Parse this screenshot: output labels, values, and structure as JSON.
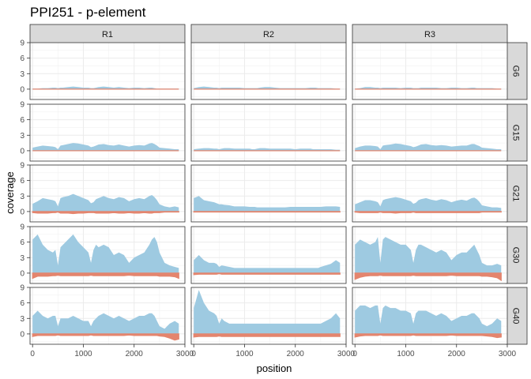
{
  "chart_data": {
    "type": "area",
    "title": "PPI251 - p-element",
    "xlabel": "position",
    "ylabel": "coverage",
    "xlim": [
      -50,
      3000
    ],
    "ylim": [
      -2,
      9
    ],
    "x_ticks": [
      0,
      1000,
      2000,
      3000
    ],
    "y_ticks": [
      0,
      3,
      6,
      9
    ],
    "grid": true,
    "columns": [
      "R1",
      "R2",
      "R3"
    ],
    "rows": [
      "G6",
      "G15",
      "G21",
      "G30",
      "G40"
    ],
    "colors": {
      "positive": "#9ecae1",
      "negative": "#e4856e",
      "strip_bg": "#d9d9d9",
      "panel_border": "#333333",
      "grid": "#ebebeb"
    },
    "series_x": [
      0,
      100,
      200,
      300,
      400,
      450,
      500,
      550,
      600,
      700,
      800,
      900,
      1000,
      1100,
      1150,
      1200,
      1250,
      1300,
      1400,
      1500,
      1600,
      1700,
      1800,
      1900,
      2000,
      2100,
      2200,
      2300,
      2350,
      2400,
      2450,
      2500,
      2600,
      2700,
      2800,
      2880
    ],
    "panels": [
      {
        "row": "G6",
        "col": "R1",
        "pos": [
          0.1,
          0.1,
          0.2,
          0.2,
          0.3,
          0.3,
          0.2,
          0.3,
          0.3,
          0.4,
          0.5,
          0.4,
          0.3,
          0.3,
          0.2,
          0.2,
          0.3,
          0.4,
          0.5,
          0.4,
          0.3,
          0.4,
          0.3,
          0.2,
          0.3,
          0.3,
          0.2,
          0.3,
          0.3,
          0.2,
          0.1,
          0.1,
          0.1,
          0.1,
          0.1,
          0.1
        ],
        "neg": [
          0,
          0,
          0,
          0,
          0,
          0,
          0,
          0,
          0,
          0,
          0,
          0,
          0,
          0,
          0,
          0,
          0,
          0,
          0,
          0,
          0,
          0,
          0,
          0,
          0,
          0,
          0,
          0,
          0,
          0,
          0,
          0,
          0,
          0,
          0,
          0
        ]
      },
      {
        "row": "G6",
        "col": "R2",
        "pos": [
          0.2,
          0.4,
          0.5,
          0.4,
          0.3,
          0.3,
          0.2,
          0.3,
          0.3,
          0.3,
          0.3,
          0.3,
          0.2,
          0.2,
          0.2,
          0.2,
          0.2,
          0.3,
          0.4,
          0.4,
          0.3,
          0.2,
          0.2,
          0.2,
          0.2,
          0.2,
          0.2,
          0.3,
          0.3,
          0.3,
          0.2,
          0.2,
          0.2,
          0.2,
          0.1,
          0.1
        ],
        "neg": [
          0,
          0,
          0,
          0,
          0,
          0,
          0,
          0,
          0,
          0,
          0,
          0,
          0,
          0,
          0,
          0,
          0,
          0,
          0,
          0,
          0,
          0,
          0,
          0,
          0,
          0,
          0,
          0,
          0,
          0,
          0,
          0,
          0,
          0,
          0,
          0
        ]
      },
      {
        "row": "G6",
        "col": "R3",
        "pos": [
          0.1,
          0.2,
          0.4,
          0.4,
          0.3,
          0.3,
          0.2,
          0.3,
          0.3,
          0.3,
          0.3,
          0.2,
          0.3,
          0.3,
          0.2,
          0.2,
          0.2,
          0.3,
          0.3,
          0.3,
          0.3,
          0.2,
          0.2,
          0.3,
          0.3,
          0.2,
          0.2,
          0.3,
          0.3,
          0.2,
          0.2,
          0.2,
          0.2,
          0.2,
          0.1,
          0.1
        ],
        "neg": [
          0,
          0,
          0,
          0,
          0,
          0,
          0,
          0,
          0,
          0,
          0,
          0,
          0,
          0,
          0,
          0,
          0,
          0,
          0,
          0,
          0,
          0,
          0,
          0,
          0,
          0,
          0,
          0,
          0,
          0,
          0,
          0,
          0,
          0,
          0,
          0
        ]
      },
      {
        "row": "G15",
        "col": "R1",
        "pos": [
          0.6,
          0.8,
          1.0,
          0.9,
          0.8,
          0.7,
          0.3,
          1.0,
          1.1,
          1.3,
          1.5,
          1.4,
          1.2,
          1.0,
          0.7,
          0.8,
          1.0,
          1.2,
          1.3,
          1.1,
          1.0,
          1.2,
          1.0,
          0.8,
          1.0,
          1.1,
          1.0,
          1.4,
          1.5,
          1.3,
          1.0,
          0.6,
          0.5,
          0.4,
          0.3,
          0.3
        ],
        "neg": [
          0,
          0,
          0,
          0,
          0,
          0,
          0,
          0,
          0,
          0,
          0,
          0,
          0,
          0,
          0,
          0,
          0,
          0,
          0,
          0,
          0,
          0,
          0,
          0,
          0,
          0,
          0,
          0,
          0,
          0,
          0,
          0,
          0,
          0,
          0,
          0
        ]
      },
      {
        "row": "G15",
        "col": "R2",
        "pos": [
          0.3,
          0.4,
          0.5,
          0.5,
          0.4,
          0.4,
          0.3,
          0.4,
          0.5,
          0.5,
          0.4,
          0.4,
          0.4,
          0.4,
          0.3,
          0.3,
          0.4,
          0.5,
          0.5,
          0.4,
          0.4,
          0.4,
          0.4,
          0.4,
          0.3,
          0.4,
          0.4,
          0.4,
          0.3,
          0.3,
          0.3,
          0.3,
          0.3,
          0.3,
          0.2,
          0.2
        ],
        "neg": [
          0,
          0,
          0,
          0,
          0,
          0,
          0,
          0,
          0,
          0,
          0,
          0,
          0,
          0,
          0,
          0,
          0,
          0,
          0,
          0,
          0,
          0,
          0,
          0,
          0,
          0,
          0,
          0,
          0,
          0,
          0,
          0,
          0,
          0,
          0,
          0
        ]
      },
      {
        "row": "G15",
        "col": "R3",
        "pos": [
          0.5,
          0.8,
          1.0,
          1.0,
          0.9,
          0.8,
          0.3,
          1.0,
          1.1,
          1.2,
          1.4,
          1.3,
          1.1,
          0.9,
          0.7,
          0.8,
          1.0,
          1.2,
          1.3,
          1.1,
          1.0,
          1.1,
          1.0,
          0.8,
          0.9,
          1.0,
          1.0,
          1.3,
          1.3,
          1.1,
          0.9,
          0.6,
          0.5,
          0.4,
          0.3,
          0.3
        ],
        "neg": [
          0,
          0,
          0,
          0,
          0,
          0,
          0,
          0,
          0,
          0,
          0,
          0,
          0,
          0,
          0,
          0,
          0,
          0,
          0,
          0,
          0,
          0,
          0,
          0,
          0,
          0,
          0,
          0,
          0,
          0,
          0,
          0,
          0,
          0,
          0,
          0
        ]
      },
      {
        "row": "G21",
        "col": "R1",
        "pos": [
          1.5,
          2.0,
          2.6,
          2.4,
          2.2,
          2.0,
          1.0,
          2.6,
          2.8,
          3.0,
          3.4,
          3.0,
          2.6,
          2.2,
          1.6,
          1.8,
          2.4,
          2.6,
          3.0,
          2.6,
          2.4,
          2.8,
          2.6,
          2.0,
          2.4,
          2.6,
          2.4,
          3.0,
          3.2,
          2.8,
          2.2,
          1.4,
          1.0,
          0.8,
          1.0,
          0.8
        ],
        "neg": [
          -0.2,
          -0.3,
          -0.3,
          -0.3,
          -0.2,
          -0.2,
          -0.1,
          -0.3,
          -0.3,
          -0.3,
          -0.4,
          -0.3,
          -0.3,
          -0.2,
          -0.2,
          -0.2,
          -0.3,
          -0.3,
          -0.3,
          -0.3,
          -0.2,
          -0.3,
          -0.3,
          -0.2,
          -0.3,
          -0.3,
          -0.2,
          -0.3,
          -0.3,
          -0.2,
          -0.2,
          -0.2,
          -0.1,
          -0.1,
          -0.1,
          -0.1
        ]
      },
      {
        "row": "G21",
        "col": "R2",
        "pos": [
          2.6,
          3.0,
          2.2,
          2.0,
          1.8,
          1.6,
          1.4,
          1.4,
          1.3,
          1.2,
          1.0,
          1.0,
          1.0,
          0.9,
          0.9,
          0.9,
          0.8,
          0.8,
          0.8,
          0.8,
          0.8,
          0.8,
          0.8,
          0.9,
          0.9,
          0.9,
          0.9,
          0.9,
          0.9,
          0.9,
          0.9,
          0.9,
          1.0,
          1.0,
          1.0,
          0.9
        ],
        "neg": [
          -0.1,
          -0.1,
          -0.1,
          -0.1,
          -0.1,
          -0.1,
          -0.1,
          -0.1,
          -0.1,
          -0.1,
          -0.1,
          -0.1,
          -0.1,
          -0.1,
          -0.1,
          -0.1,
          -0.1,
          -0.1,
          -0.1,
          -0.1,
          -0.1,
          -0.1,
          -0.1,
          -0.1,
          -0.1,
          -0.1,
          -0.1,
          -0.1,
          -0.1,
          -0.1,
          -0.1,
          -0.1,
          -0.1,
          -0.1,
          -0.1,
          -0.1
        ]
      },
      {
        "row": "G21",
        "col": "R3",
        "pos": [
          1.4,
          1.8,
          2.2,
          2.2,
          2.0,
          1.8,
          1.0,
          2.2,
          2.4,
          2.6,
          2.8,
          2.6,
          2.3,
          2.0,
          1.5,
          1.7,
          2.2,
          2.4,
          2.6,
          2.3,
          2.1,
          2.4,
          2.2,
          1.8,
          2.1,
          2.3,
          2.1,
          2.6,
          2.7,
          2.4,
          1.9,
          1.2,
          1.0,
          0.8,
          0.8,
          0.7
        ],
        "neg": [
          -0.1,
          -0.2,
          -0.2,
          -0.2,
          -0.2,
          -0.2,
          -0.1,
          -0.2,
          -0.2,
          -0.2,
          -0.3,
          -0.2,
          -0.2,
          -0.2,
          -0.1,
          -0.2,
          -0.2,
          -0.2,
          -0.2,
          -0.2,
          -0.2,
          -0.2,
          -0.2,
          -0.2,
          -0.2,
          -0.2,
          -0.2,
          -0.2,
          -0.2,
          -0.2,
          -0.2,
          -0.1,
          -0.1,
          -0.1,
          -0.1,
          -0.1
        ]
      },
      {
        "row": "G30",
        "col": "R1",
        "pos": [
          6.5,
          7.5,
          5.5,
          4.5,
          4.0,
          4.5,
          1.5,
          5.0,
          5.5,
          6.5,
          7.5,
          6.0,
          5.0,
          4.0,
          2.0,
          4.5,
          5.5,
          5.0,
          5.5,
          5.0,
          3.5,
          4.0,
          3.5,
          2.0,
          3.0,
          3.5,
          4.0,
          5.5,
          6.5,
          7.0,
          6.0,
          4.0,
          2.0,
          1.5,
          1.2,
          1.0
        ],
        "neg": [
          -1.0,
          -0.6,
          -0.6,
          -0.6,
          -0.5,
          -0.5,
          -0.4,
          -0.5,
          -0.5,
          -0.5,
          -0.5,
          -0.5,
          -0.5,
          -0.5,
          -0.4,
          -0.5,
          -0.5,
          -0.5,
          -0.5,
          -0.5,
          -0.5,
          -0.5,
          -0.5,
          -0.4,
          -0.5,
          -0.5,
          -0.5,
          -0.5,
          -0.5,
          -0.5,
          -0.5,
          -0.6,
          -0.6,
          -0.6,
          -0.7,
          -1.0
        ]
      },
      {
        "row": "G30",
        "col": "R2",
        "pos": [
          2.5,
          3.5,
          2.5,
          2.0,
          2.0,
          1.8,
          1.2,
          1.5,
          1.4,
          1.2,
          1.0,
          1.0,
          1.0,
          1.0,
          1.0,
          1.0,
          1.0,
          1.0,
          1.0,
          1.0,
          1.0,
          1.0,
          1.0,
          1.0,
          1.0,
          1.0,
          1.0,
          1.0,
          1.0,
          1.0,
          1.0,
          1.2,
          1.5,
          1.8,
          2.5,
          2.0
        ],
        "neg": [
          -0.3,
          -0.2,
          -0.2,
          -0.2,
          -0.2,
          -0.2,
          -0.1,
          -0.2,
          -0.2,
          -0.2,
          -0.2,
          -0.2,
          -0.2,
          -0.2,
          -0.2,
          -0.2,
          -0.2,
          -0.2,
          -0.2,
          -0.2,
          -0.2,
          -0.2,
          -0.2,
          -0.2,
          -0.2,
          -0.2,
          -0.2,
          -0.2,
          -0.2,
          -0.2,
          -0.2,
          -0.2,
          -0.2,
          -0.2,
          -0.2,
          -0.2
        ]
      },
      {
        "row": "G30",
        "col": "R3",
        "pos": [
          5.5,
          6.5,
          6.0,
          5.5,
          6.0,
          7.0,
          2.0,
          6.5,
          7.0,
          6.5,
          6.0,
          5.5,
          5.5,
          4.5,
          2.0,
          4.5,
          5.5,
          5.5,
          5.0,
          4.5,
          4.0,
          4.5,
          4.0,
          2.5,
          3.5,
          4.0,
          4.0,
          5.0,
          5.5,
          4.5,
          3.5,
          2.0,
          1.5,
          1.5,
          1.8,
          1.5
        ],
        "neg": [
          -1.2,
          -0.8,
          -0.6,
          -0.5,
          -0.5,
          -0.5,
          -0.4,
          -0.5,
          -0.5,
          -0.5,
          -0.5,
          -0.5,
          -0.5,
          -0.5,
          -0.4,
          -0.5,
          -0.5,
          -0.5,
          -0.5,
          -0.5,
          -0.5,
          -0.5,
          -0.5,
          -0.4,
          -0.5,
          -0.5,
          -0.5,
          -0.5,
          -0.5,
          -0.5,
          -0.5,
          -0.6,
          -0.6,
          -0.7,
          -0.9,
          -1.4
        ]
      },
      {
        "row": "G40",
        "col": "R1",
        "pos": [
          3.5,
          4.5,
          3.5,
          3.0,
          3.5,
          3.5,
          1.5,
          3.0,
          3.0,
          3.0,
          3.5,
          3.0,
          2.5,
          2.5,
          1.5,
          2.5,
          3.0,
          3.5,
          4.0,
          3.5,
          3.0,
          3.5,
          3.0,
          2.5,
          3.0,
          3.5,
          3.5,
          4.0,
          4.0,
          3.5,
          2.5,
          1.5,
          1.0,
          2.0,
          2.5,
          2.0
        ],
        "neg": [
          -0.5,
          -0.3,
          -0.3,
          -0.3,
          -0.3,
          -0.3,
          -0.2,
          -0.3,
          -0.3,
          -0.3,
          -0.3,
          -0.3,
          -0.3,
          -0.3,
          -0.2,
          -0.3,
          -0.3,
          -0.3,
          -0.3,
          -0.3,
          -0.3,
          -0.3,
          -0.3,
          -0.2,
          -0.3,
          -0.3,
          -0.3,
          -0.3,
          -0.3,
          -0.3,
          -0.3,
          -0.4,
          -0.5,
          -0.8,
          -1.2,
          -1.0
        ]
      },
      {
        "row": "G40",
        "col": "R2",
        "pos": [
          5.0,
          8.5,
          6.0,
          4.5,
          4.0,
          3.5,
          2.0,
          3.0,
          2.5,
          2.0,
          2.0,
          2.0,
          2.0,
          2.0,
          2.0,
          2.0,
          2.0,
          2.0,
          2.0,
          2.0,
          2.0,
          2.0,
          2.0,
          2.0,
          2.0,
          2.0,
          2.0,
          2.0,
          2.0,
          2.0,
          2.0,
          2.0,
          2.5,
          3.0,
          4.0,
          3.0
        ],
        "neg": [
          -0.6,
          -0.5,
          -0.5,
          -0.5,
          -0.5,
          -0.5,
          -0.4,
          -0.5,
          -0.5,
          -0.5,
          -0.5,
          -0.5,
          -0.5,
          -0.5,
          -0.5,
          -0.5,
          -0.5,
          -0.5,
          -0.5,
          -0.5,
          -0.5,
          -0.5,
          -0.5,
          -0.5,
          -0.5,
          -0.5,
          -0.5,
          -0.5,
          -0.5,
          -0.5,
          -0.5,
          -0.5,
          -0.5,
          -0.5,
          -0.5,
          -0.5
        ]
      },
      {
        "row": "G40",
        "col": "R3",
        "pos": [
          4.5,
          5.5,
          5.5,
          5.0,
          5.5,
          5.5,
          2.0,
          5.0,
          5.5,
          5.0,
          5.0,
          4.5,
          4.5,
          4.0,
          2.0,
          4.0,
          4.5,
          4.5,
          4.5,
          4.0,
          3.5,
          4.0,
          3.5,
          2.5,
          3.0,
          3.5,
          3.5,
          4.0,
          4.0,
          3.5,
          3.0,
          2.0,
          1.5,
          2.0,
          3.0,
          2.5
        ],
        "neg": [
          -0.6,
          -0.4,
          -0.3,
          -0.3,
          -0.3,
          -0.3,
          -0.2,
          -0.3,
          -0.3,
          -0.3,
          -0.3,
          -0.3,
          -0.3,
          -0.3,
          -0.2,
          -0.3,
          -0.3,
          -0.3,
          -0.3,
          -0.3,
          -0.3,
          -0.3,
          -0.3,
          -0.2,
          -0.3,
          -0.3,
          -0.3,
          -0.3,
          -0.3,
          -0.3,
          -0.3,
          -0.3,
          -0.4,
          -0.5,
          -0.7,
          -0.6
        ]
      }
    ]
  }
}
